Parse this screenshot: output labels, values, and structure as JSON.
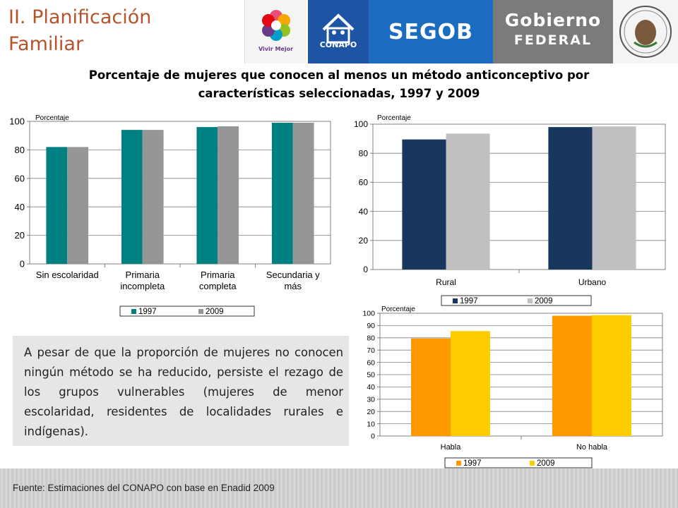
{
  "header": {
    "title_line1": "II. Planificación",
    "title_line2": "Familiar",
    "logos": {
      "vivir_mejor": "Vivir Mejor",
      "conapo": "CONAPO",
      "segob": "SEGOB",
      "gobierno_line1": "Gobierno",
      "gobierno_line2": "FEDERAL"
    }
  },
  "main_title_line1": "Porcentaje de mujeres que conocen al menos un método anticonceptivo por",
  "main_title_line2": "características seleccionadas, 1997 y 2009",
  "chart_data": [
    {
      "type": "bar",
      "ylabel": "Porcentaje",
      "ylim": [
        0,
        100
      ],
      "yticks": [
        0,
        20,
        40,
        60,
        80,
        100
      ],
      "categories": [
        [
          "Sin escolaridad"
        ],
        [
          "Primaria",
          "incompleta"
        ],
        [
          "Primaria",
          "completa"
        ],
        [
          "Secundaria y",
          "más"
        ]
      ],
      "series": [
        {
          "name": "1997",
          "color": "#008080",
          "values": [
            82,
            94,
            96,
            99
          ]
        },
        {
          "name": "2009",
          "color": "#969696",
          "values": [
            82,
            94,
            96.5,
            99
          ]
        }
      ],
      "grid": true,
      "legend": "bottom"
    },
    {
      "type": "bar",
      "ylabel": "Porcentaje",
      "ylim": [
        0,
        100
      ],
      "yticks": [
        0,
        20,
        40,
        60,
        80,
        100
      ],
      "categories": [
        [
          "Rural"
        ],
        [
          "Urbano"
        ]
      ],
      "series": [
        {
          "name": "1997",
          "color": "#17375e",
          "values": [
            89.5,
            98
          ]
        },
        {
          "name": "2009",
          "color": "#c0c0c0",
          "values": [
            93.5,
            98.5
          ]
        }
      ],
      "grid": true,
      "legend": "bottom"
    },
    {
      "type": "bar",
      "ylabel": "Porcentaje",
      "ylim": [
        0,
        100
      ],
      "yticks": [
        0,
        10,
        20,
        30,
        40,
        50,
        60,
        70,
        80,
        90,
        100
      ],
      "categories": [
        [
          "Habla"
        ],
        [
          "No habla"
        ]
      ],
      "series": [
        {
          "name": "1997",
          "color": "#ff9900",
          "values": [
            79.5,
            98
          ]
        },
        {
          "name": "2009",
          "color": "#ffcc00",
          "values": [
            85.5,
            98.5
          ]
        }
      ],
      "grid": true,
      "legend": "bottom"
    }
  ],
  "panel_text": "A pesar de que la proporción de mujeres no conocen ningún método se ha reducido, persiste el rezago de los grupos vulnerables (mujeres de menor escolaridad, residentes de localidades rurales e indígenas).",
  "footer_text": "Fuente: Estimaciones del CONAPO con base en Enadid 2009"
}
